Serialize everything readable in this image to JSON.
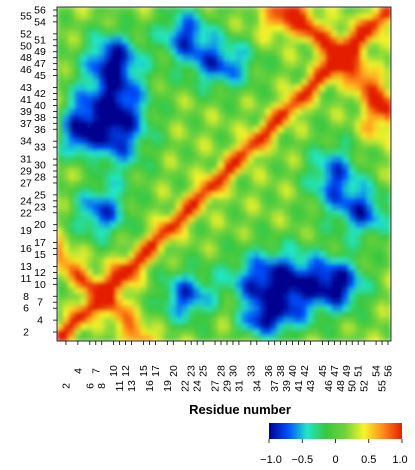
{
  "chart_data": {
    "type": "heatmap",
    "title": "",
    "xlabel": "Residue number",
    "ylabel": "",
    "axis_range": [
      1,
      56
    ],
    "x_tick_labels": [
      2,
      4,
      6,
      7,
      8,
      10,
      11,
      12,
      13,
      15,
      16,
      17,
      19,
      20,
      22,
      23,
      24,
      25,
      27,
      28,
      29,
      30,
      31,
      33,
      34,
      36,
      37,
      38,
      39,
      40,
      41,
      42,
      43,
      45,
      46,
      47,
      48,
      49,
      50,
      51,
      52,
      54,
      55,
      56
    ],
    "y_tick_labels": [
      2,
      4,
      6,
      7,
      8,
      10,
      11,
      12,
      13,
      15,
      16,
      17,
      19,
      20,
      22,
      23,
      24,
      25,
      27,
      28,
      29,
      30,
      31,
      33,
      34,
      36,
      37,
      38,
      39,
      40,
      41,
      42,
      43,
      45,
      46,
      47,
      48,
      49,
      50,
      51,
      52,
      54,
      55,
      56
    ],
    "value_range": [
      -1.0,
      1.0
    ],
    "colorbar": {
      "colors": [
        "#00008f",
        "#0050ff",
        "#22e6c8",
        "#37c840",
        "#6fd23c",
        "#f5f52a",
        "#ff8c1a",
        "#e41e00"
      ],
      "tick_labels": [
        "−1.0",
        "−0.5",
        "0",
        "0.5",
        "1.0"
      ],
      "tick_values": [
        -1.0,
        -0.5,
        0,
        0.5,
        1.0
      ]
    },
    "features": [
      {
        "name": "diagonal",
        "value": 1.0
      },
      {
        "name": "anti-diagonal band 2-16",
        "value": 0.85
      },
      {
        "name": "anti-diagonal band 40-56",
        "value": 0.8
      },
      {
        "name": "off-diagonal regions",
        "value": -0.8
      }
    ]
  }
}
